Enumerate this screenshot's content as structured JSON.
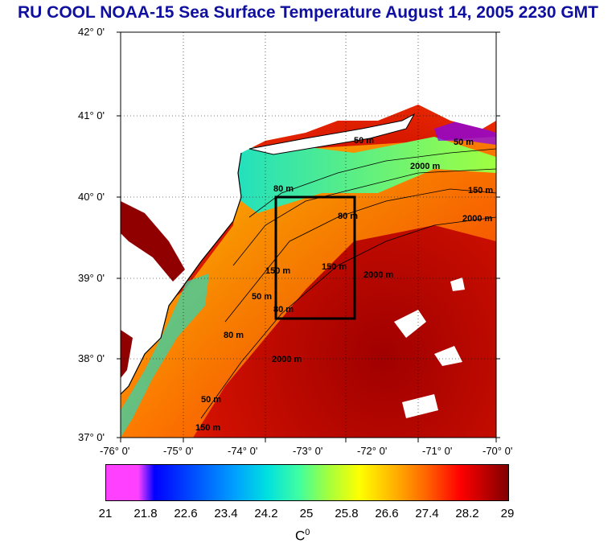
{
  "title": "RU COOL  NOAA-15 Sea Surface Temperature August 14, 2005 2230 GMT",
  "lat_labels": [
    "42° 0'",
    "41° 0'",
    "40° 0'",
    "39° 0'",
    "38° 0'",
    "37° 0'"
  ],
  "lon_labels": [
    "-76° 0'",
    "-75° 0'",
    "-74° 0'",
    "-73° 0'",
    "-72° 0'",
    "-71° 0'",
    "-70° 0'"
  ],
  "colorbar": {
    "labels": [
      "21",
      "21.8",
      "22.6",
      "23.4",
      "24.2",
      "25",
      "25.8",
      "26.6",
      "27.4",
      "28.2",
      "29"
    ],
    "unit": "C",
    "unit_sup": "0"
  },
  "contour_labels": [
    "50 m",
    "80 m",
    "150 m",
    "2000 m",
    "50 m",
    "80 m",
    "150 m",
    "2000 m",
    "50 m",
    "80 m",
    "150 m",
    "2000 m",
    "50 m",
    "80 m",
    "150 m",
    "2000 m"
  ],
  "colors": {
    "title": "#1010a0",
    "land": "#ffffff",
    "warm": "#cc0000",
    "cool": "#ffd000"
  }
}
